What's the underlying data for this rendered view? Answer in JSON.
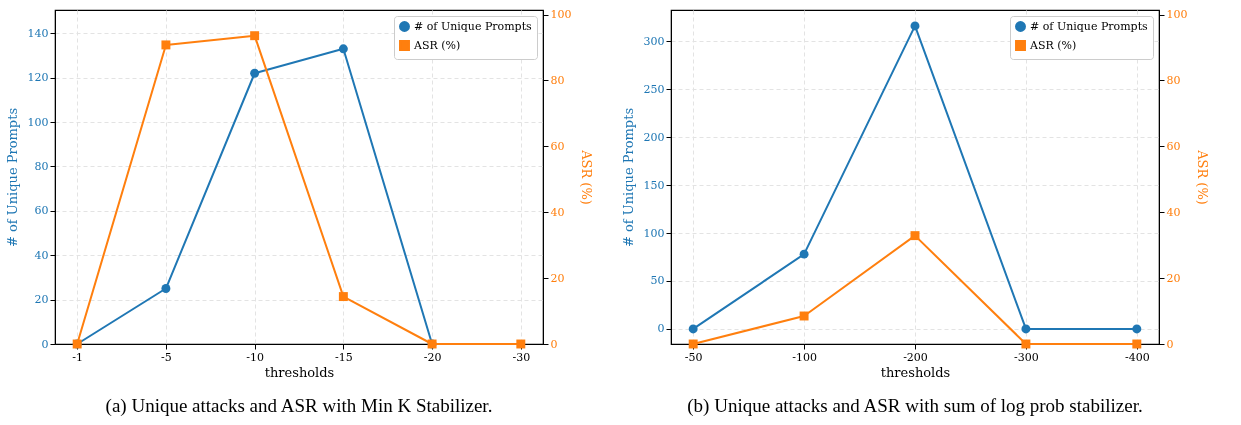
{
  "chart_data": [
    {
      "type": "line",
      "categories": [
        "-1",
        "-5",
        "-10",
        "-15",
        "-20",
        "-30"
      ],
      "xlabel": "thresholds",
      "ylabel": "# of Unique Prompts",
      "y2label": "ASR (%)",
      "ylim": [
        0,
        150.5
      ],
      "yticks": [
        0,
        20,
        40,
        60,
        80,
        100,
        120,
        140
      ],
      "y2lim": [
        0,
        101.4
      ],
      "y2ticks": [
        0,
        20,
        40,
        60,
        80,
        100
      ],
      "grid": true,
      "legend": "top right",
      "line_style": "solid",
      "series": [
        {
          "name": "# of Unique Prompts",
          "color": "#1f77b4",
          "marker": "circle",
          "values": [
            0,
            25,
            122,
            133,
            0,
            null
          ]
        },
        {
          "name": "ASR (%)",
          "color": "#ff7f0e",
          "marker": "square",
          "axis": "y2",
          "values": [
            0,
            90.8,
            93.6,
            14.4,
            0,
            0
          ]
        }
      ],
      "annotations": [
        "(a) Unique attacks and ASR with Min K Stabilizer."
      ]
    },
    {
      "type": "line",
      "categories": [
        "-50",
        "-100",
        "-200",
        "-300",
        "-400"
      ],
      "xlabel": "thresholds",
      "ylabel": "# of Unique Prompts",
      "y2label": "ASR (%)",
      "ylim": [
        -15.7,
        332.6
      ],
      "yticks": [
        0,
        50,
        100,
        150,
        200,
        250,
        300
      ],
      "y2lim": [
        0,
        101.4
      ],
      "y2ticks": [
        0,
        20,
        40,
        60,
        80,
        100
      ],
      "grid": true,
      "legend": "top right",
      "line_style": "solid",
      "series": [
        {
          "name": "# of Unique Prompts",
          "color": "#1f77b4",
          "marker": "circle",
          "values": [
            0,
            78,
            316,
            0,
            0
          ]
        },
        {
          "name": "ASR (%)",
          "color": "#ff7f0e",
          "marker": "square",
          "axis": "y2",
          "values": [
            0,
            8.5,
            32.9,
            0,
            0
          ]
        }
      ],
      "annotations": [
        "(b) Unique attacks and ASR with sum of log prob stabilizer."
      ]
    }
  ]
}
